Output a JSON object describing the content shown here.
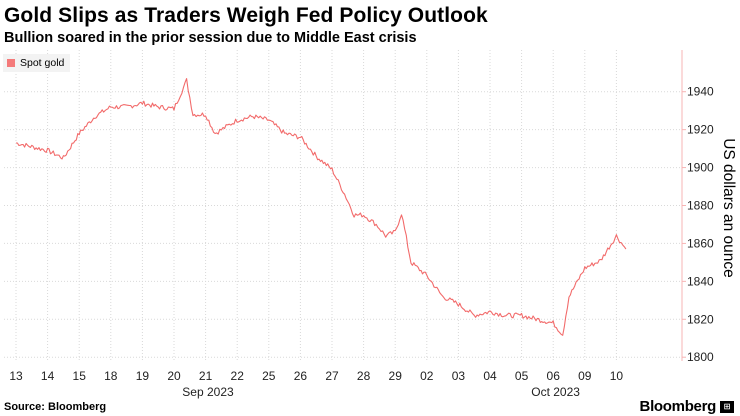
{
  "title": "Gold Slips as Traders Weigh Fed Policy Outlook",
  "subtitle": "Bullion soared in the prior session due to Middle East crisis",
  "source": "Source: Bloomberg",
  "brand": "Bloomberg",
  "colors": {
    "series": "#f26b6b",
    "grid": "#d9d9d9",
    "axis": "#f7b4b4"
  },
  "chart_data": {
    "type": "line",
    "title": "Gold Slips as Traders Weigh Fed Policy Outlook",
    "subtitle": "Bullion soared in the prior session due to Middle East crisis",
    "xlabel": "",
    "ylabel": "US dollars an ounce",
    "ylim": [
      1798,
      1962
    ],
    "yticks": [
      1800,
      1820,
      1840,
      1860,
      1880,
      1900,
      1920,
      1940
    ],
    "grid": true,
    "legend": "top-left",
    "x_ticks": [
      "13",
      "14",
      "15",
      "18",
      "19",
      "20",
      "21",
      "22",
      "25",
      "26",
      "27",
      "28",
      "29",
      "02",
      "03",
      "04",
      "05",
      "06",
      "09",
      "10"
    ],
    "x_month_labels": [
      {
        "label": "Sep 2023",
        "at": "20"
      },
      {
        "label": "Oct 2023",
        "at": "05"
      }
    ],
    "series": [
      {
        "name": "Spot gold",
        "x": [
          "13",
          "13.5",
          "14",
          "14.5",
          "15",
          "15.5",
          "18",
          "18.5",
          "19",
          "19.5",
          "20",
          "20.4",
          "20.6",
          "21",
          "21.3",
          "21.6",
          "22",
          "22.5",
          "25",
          "25.5",
          "26",
          "26.5",
          "27",
          "27.4",
          "27.7",
          "28",
          "28.4",
          "28.7",
          "29",
          "29.2",
          "29.5",
          "02",
          "02.5",
          "03",
          "03.5",
          "04",
          "04.5",
          "05",
          "05.5",
          "06",
          "06.3",
          "06.5",
          "09",
          "09.5",
          "10",
          "10.3"
        ],
        "values": [
          1913,
          1911,
          1909,
          1905,
          1918,
          1927,
          1932,
          1932,
          1934,
          1932,
          1931,
          1946,
          1928,
          1928,
          1918,
          1921,
          1925,
          1927,
          1925,
          1918,
          1916,
          1906,
          1899,
          1886,
          1875,
          1875,
          1870,
          1864,
          1866,
          1876,
          1850,
          1843,
          1832,
          1828,
          1822,
          1824,
          1822,
          1822,
          1820,
          1818,
          1812,
          1832,
          1847,
          1851,
          1864,
          1857
        ]
      }
    ]
  }
}
